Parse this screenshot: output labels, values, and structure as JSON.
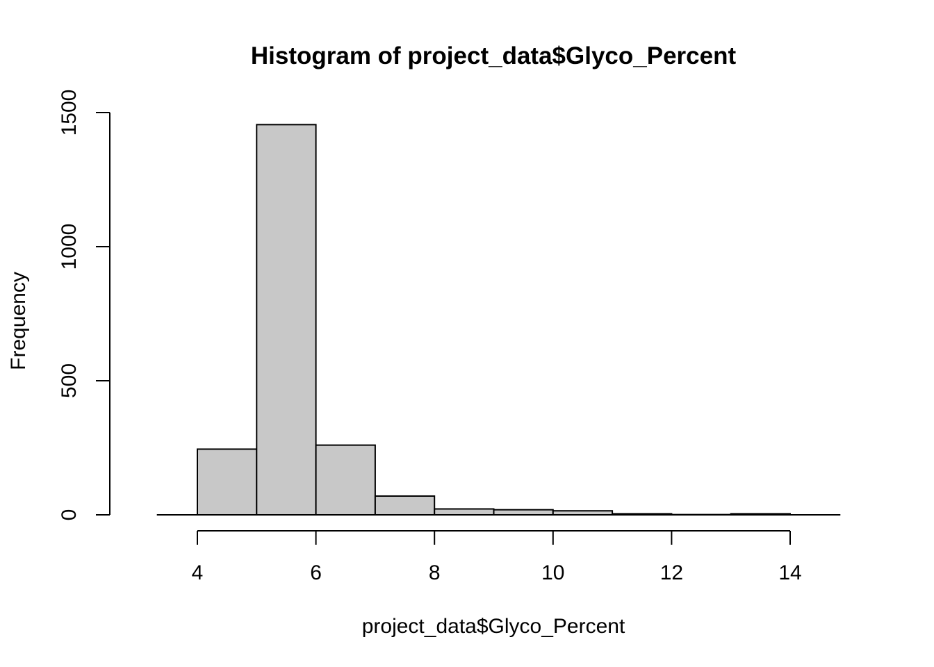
{
  "chart_data": {
    "type": "bar",
    "title": "Histogram of project_data$Glyco_Percent",
    "xlabel": "project_data$Glyco_Percent",
    "ylabel": "Frequency",
    "bins": [
      {
        "start": 4,
        "end": 5,
        "count": 245
      },
      {
        "start": 5,
        "end": 6,
        "count": 1455
      },
      {
        "start": 6,
        "end": 7,
        "count": 260
      },
      {
        "start": 7,
        "end": 8,
        "count": 70
      },
      {
        "start": 8,
        "end": 9,
        "count": 22
      },
      {
        "start": 9,
        "end": 10,
        "count": 19
      },
      {
        "start": 10,
        "end": 11,
        "count": 15
      },
      {
        "start": 11,
        "end": 12,
        "count": 4
      },
      {
        "start": 12,
        "end": 13,
        "count": 1
      },
      {
        "start": 13,
        "end": 14,
        "count": 4
      }
    ],
    "xlim": [
      3,
      15
    ],
    "ylim": [
      0,
      1500
    ],
    "x_ticks": [
      4,
      6,
      8,
      10,
      12,
      14
    ],
    "y_ticks": [
      0,
      500,
      1000,
      1500
    ],
    "bar_color": "#c8c8c8",
    "grid": false,
    "legend": "none"
  }
}
